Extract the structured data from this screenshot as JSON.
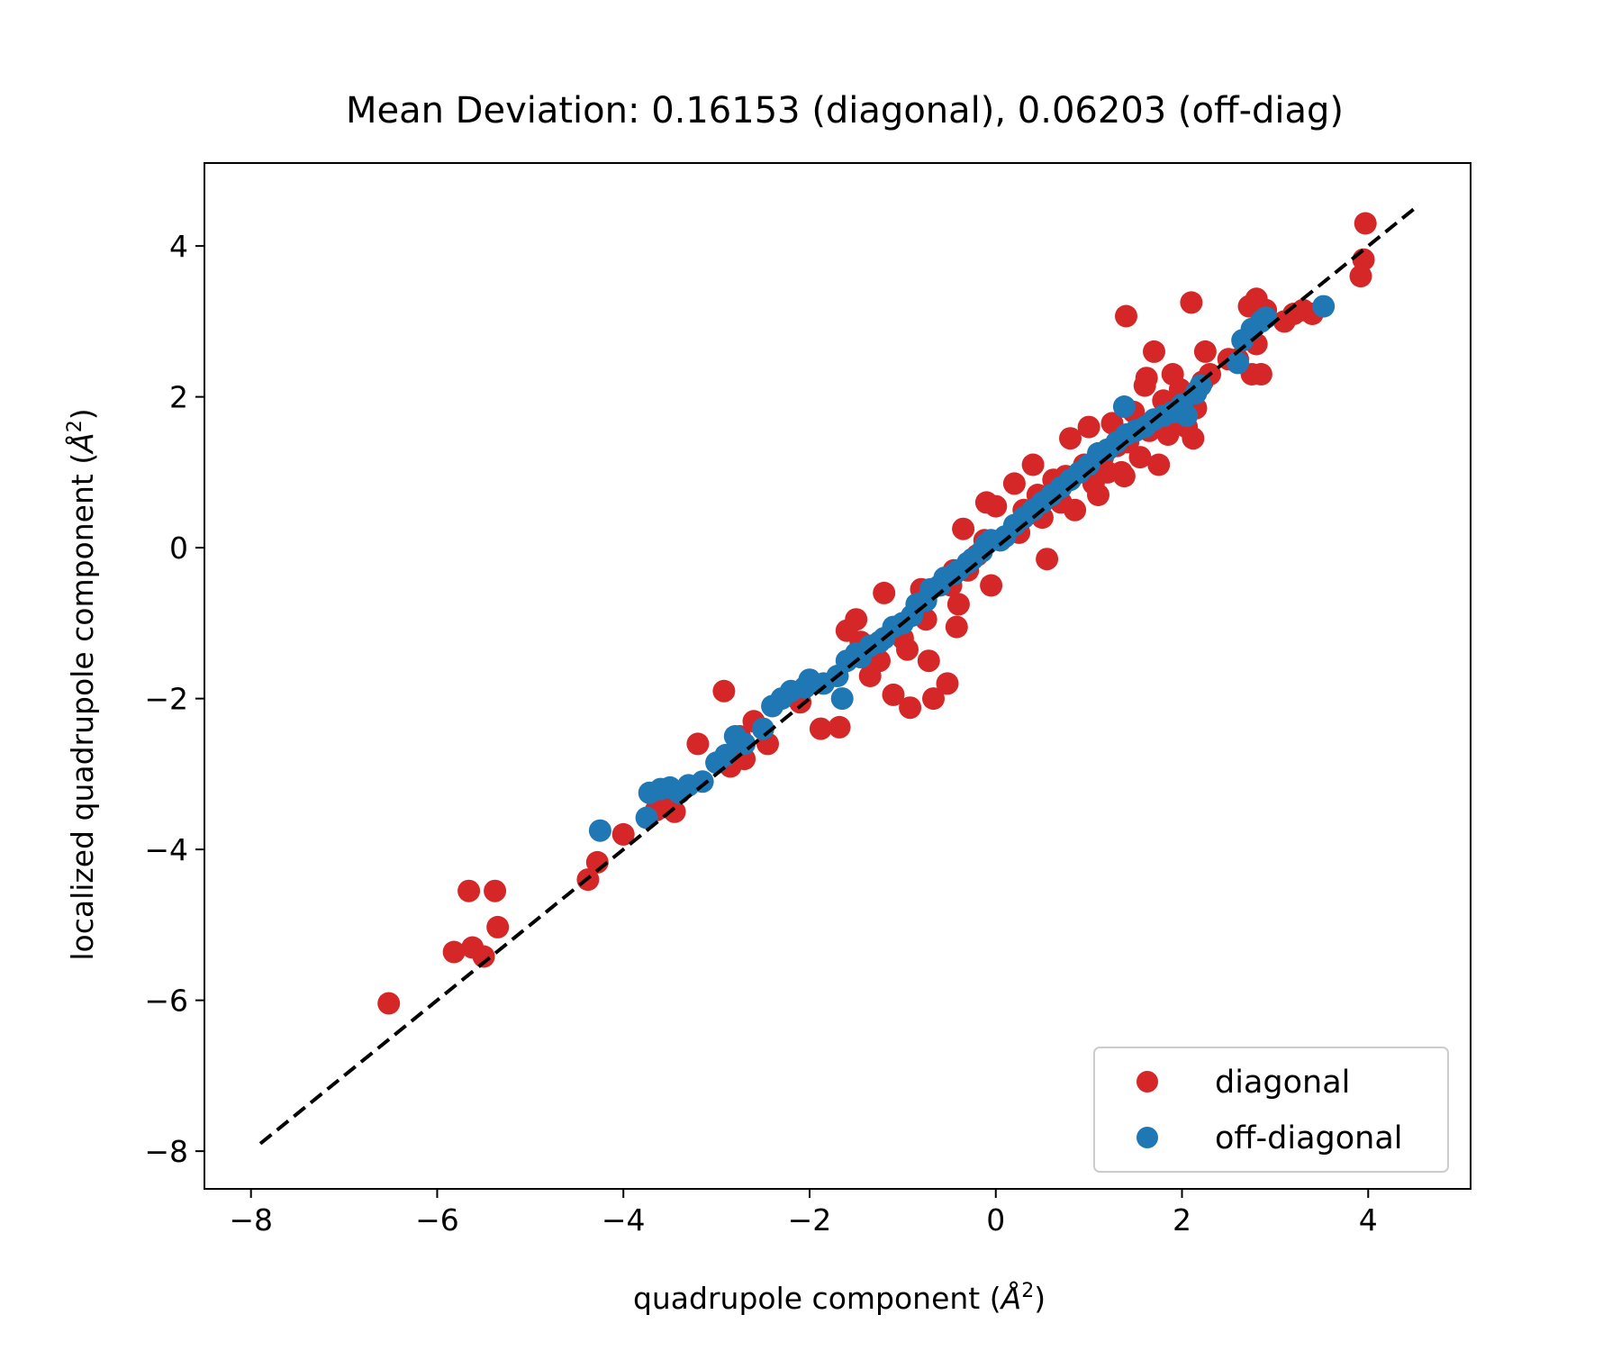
{
  "chart_data": {
    "type": "scatter",
    "title": "Mean Deviation: 0.16153 (diagonal), 0.06203 (off-diag)",
    "xlabel": "quadrupole component (",
    "ylabel": "localized quadrupole component (",
    "label_unit": "Å",
    "label_unit_power": "2",
    "xlim": [
      -8.5,
      5.1
    ],
    "ylim": [
      -8.5,
      5.1
    ],
    "xticks": [
      -8,
      -6,
      -4,
      -2,
      0,
      2,
      4
    ],
    "yticks": [
      -8,
      -6,
      -4,
      -2,
      0,
      2,
      4
    ],
    "xtick_labels": [
      "−8",
      "−6",
      "−4",
      "−2",
      "0",
      "2",
      "4"
    ],
    "ytick_labels": [
      "−8",
      "−6",
      "−4",
      "−2",
      "0",
      "2",
      "4"
    ],
    "grid": false,
    "legend_position": "lower-right",
    "reference_line": {
      "style": "dashed",
      "color": "#000000",
      "x": [
        -7.9,
        4.5
      ],
      "y": [
        -7.9,
        4.5
      ]
    },
    "series": [
      {
        "name": "diagonal",
        "color": "#d62728",
        "points": [
          [
            -6.52,
            -6.04
          ],
          [
            -5.82,
            -5.36
          ],
          [
            -5.66,
            -4.55
          ],
          [
            -5.62,
            -5.3
          ],
          [
            -5.5,
            -5.42
          ],
          [
            -5.38,
            -4.55
          ],
          [
            -5.35,
            -5.03
          ],
          [
            -4.38,
            -4.4
          ],
          [
            -4.28,
            -4.17
          ],
          [
            -4.0,
            -3.8
          ],
          [
            -3.65,
            -3.48
          ],
          [
            -3.45,
            -3.5
          ],
          [
            -3.5,
            -3.3
          ],
          [
            -3.2,
            -2.6
          ],
          [
            -2.92,
            -1.9
          ],
          [
            -2.85,
            -2.9
          ],
          [
            -2.75,
            -2.5
          ],
          [
            -2.6,
            -2.3
          ],
          [
            -2.45,
            -2.6
          ],
          [
            -2.7,
            -2.8
          ],
          [
            -2.1,
            -2.05
          ],
          [
            -1.88,
            -2.4
          ],
          [
            -1.68,
            -2.38
          ],
          [
            -1.6,
            -1.1
          ],
          [
            -1.45,
            -1.25
          ],
          [
            -1.35,
            -1.7
          ],
          [
            -1.5,
            -0.95
          ],
          [
            -1.25,
            -1.5
          ],
          [
            -1.2,
            -0.6
          ],
          [
            -1.1,
            -1.95
          ],
          [
            -1.0,
            -1.2
          ],
          [
            -0.95,
            -1.35
          ],
          [
            -0.92,
            -2.12
          ],
          [
            -0.8,
            -0.55
          ],
          [
            -0.75,
            -0.95
          ],
          [
            -0.72,
            -1.5
          ],
          [
            -0.67,
            -2.0
          ],
          [
            -0.52,
            -1.8
          ],
          [
            -0.42,
            -1.05
          ],
          [
            -0.48,
            -0.5
          ],
          [
            -0.4,
            -0.75
          ],
          [
            -0.3,
            -0.3
          ],
          [
            -0.2,
            -0.1
          ],
          [
            -0.05,
            -0.5
          ],
          [
            -0.45,
            -0.3
          ],
          [
            -0.35,
            0.25
          ],
          [
            -0.12,
            0.1
          ],
          [
            -0.1,
            0.6
          ],
          [
            0.0,
            0.55
          ],
          [
            0.05,
            0.1
          ],
          [
            0.2,
            0.85
          ],
          [
            0.3,
            0.5
          ],
          [
            0.25,
            0.2
          ],
          [
            0.4,
            1.1
          ],
          [
            0.45,
            0.7
          ],
          [
            0.55,
            -0.15
          ],
          [
            0.5,
            0.4
          ],
          [
            0.62,
            0.9
          ],
          [
            0.7,
            0.6
          ],
          [
            0.8,
            1.45
          ],
          [
            0.75,
            0.95
          ],
          [
            0.85,
            0.5
          ],
          [
            0.95,
            1.1
          ],
          [
            1.0,
            1.6
          ],
          [
            1.05,
            0.85
          ],
          [
            1.1,
            0.7
          ],
          [
            1.15,
            1.2
          ],
          [
            1.2,
            1.0
          ],
          [
            1.25,
            1.65
          ],
          [
            1.3,
            1.35
          ],
          [
            1.35,
            1.0
          ],
          [
            1.38,
            0.95
          ],
          [
            1.42,
            1.4
          ],
          [
            1.48,
            1.8
          ],
          [
            1.4,
            3.07
          ],
          [
            1.55,
            1.2
          ],
          [
            1.6,
            2.15
          ],
          [
            1.62,
            2.25
          ],
          [
            1.65,
            1.55
          ],
          [
            1.7,
            2.6
          ],
          [
            1.75,
            1.1
          ],
          [
            1.8,
            1.95
          ],
          [
            1.85,
            1.5
          ],
          [
            1.9,
            2.3
          ],
          [
            1.95,
            1.7
          ],
          [
            1.98,
            2.1
          ],
          [
            2.05,
            1.6
          ],
          [
            2.1,
            3.25
          ],
          [
            2.12,
            1.45
          ],
          [
            2.15,
            1.85
          ],
          [
            2.22,
            2.2
          ],
          [
            2.25,
            2.6
          ],
          [
            2.3,
            2.3
          ],
          [
            2.5,
            2.5
          ],
          [
            2.6,
            2.5
          ],
          [
            2.75,
            2.3
          ],
          [
            2.85,
            2.3
          ],
          [
            2.8,
            2.7
          ],
          [
            2.72,
            3.2
          ],
          [
            2.8,
            3.3
          ],
          [
            2.9,
            3.15
          ],
          [
            3.1,
            3.0
          ],
          [
            3.2,
            3.1
          ],
          [
            3.3,
            3.15
          ],
          [
            3.4,
            3.1
          ],
          [
            3.92,
            3.6
          ],
          [
            3.95,
            3.82
          ],
          [
            3.97,
            4.3
          ]
        ]
      },
      {
        "name": "off-diagonal",
        "color": "#1f77b4",
        "points": [
          [
            -4.25,
            -3.75
          ],
          [
            -3.75,
            -3.58
          ],
          [
            -3.72,
            -3.25
          ],
          [
            -3.6,
            -3.2
          ],
          [
            -3.5,
            -3.18
          ],
          [
            -3.4,
            -3.25
          ],
          [
            -3.3,
            -3.15
          ],
          [
            -3.15,
            -3.1
          ],
          [
            -3.0,
            -2.85
          ],
          [
            -2.9,
            -2.75
          ],
          [
            -2.8,
            -2.5
          ],
          [
            -2.7,
            -2.6
          ],
          [
            -2.5,
            -2.4
          ],
          [
            -2.4,
            -2.1
          ],
          [
            -2.3,
            -2.0
          ],
          [
            -2.2,
            -1.9
          ],
          [
            -2.05,
            -1.85
          ],
          [
            -2.0,
            -1.75
          ],
          [
            -1.85,
            -1.8
          ],
          [
            -1.65,
            -2.0
          ],
          [
            -1.7,
            -1.7
          ],
          [
            -1.6,
            -1.5
          ],
          [
            -1.5,
            -1.4
          ],
          [
            -1.45,
            -1.45
          ],
          [
            -1.35,
            -1.3
          ],
          [
            -1.25,
            -1.25
          ],
          [
            -1.2,
            -1.2
          ],
          [
            -1.1,
            -1.05
          ],
          [
            -1.0,
            -1.0
          ],
          [
            -0.9,
            -0.9
          ],
          [
            -0.85,
            -0.75
          ],
          [
            -0.75,
            -0.7
          ],
          [
            -0.7,
            -0.55
          ],
          [
            -0.6,
            -0.5
          ],
          [
            -0.55,
            -0.4
          ],
          [
            -0.45,
            -0.35
          ],
          [
            -0.4,
            -0.3
          ],
          [
            -0.3,
            -0.2
          ],
          [
            -0.25,
            -0.15
          ],
          [
            -0.15,
            -0.05
          ],
          [
            -0.1,
            0.05
          ],
          [
            -0.05,
            0.1
          ],
          [
            0.05,
            0.1
          ],
          [
            0.1,
            0.15
          ],
          [
            0.2,
            0.3
          ],
          [
            0.3,
            0.4
          ],
          [
            0.4,
            0.5
          ],
          [
            0.5,
            0.6
          ],
          [
            0.6,
            0.7
          ],
          [
            0.7,
            0.8
          ],
          [
            0.8,
            0.9
          ],
          [
            0.9,
            1.0
          ],
          [
            1.0,
            1.1
          ],
          [
            1.1,
            1.25
          ],
          [
            1.2,
            1.3
          ],
          [
            1.3,
            1.4
          ],
          [
            1.4,
            1.5
          ],
          [
            1.38,
            1.87
          ],
          [
            1.5,
            1.55
          ],
          [
            1.6,
            1.6
          ],
          [
            1.7,
            1.7
          ],
          [
            1.8,
            1.75
          ],
          [
            1.9,
            1.8
          ],
          [
            2.0,
            1.9
          ],
          [
            2.05,
            1.75
          ],
          [
            2.15,
            2.05
          ],
          [
            2.2,
            2.15
          ],
          [
            2.6,
            2.45
          ],
          [
            2.65,
            2.75
          ],
          [
            2.75,
            2.9
          ],
          [
            2.85,
            3.0
          ],
          [
            2.9,
            3.05
          ],
          [
            3.52,
            3.2
          ]
        ]
      }
    ]
  }
}
